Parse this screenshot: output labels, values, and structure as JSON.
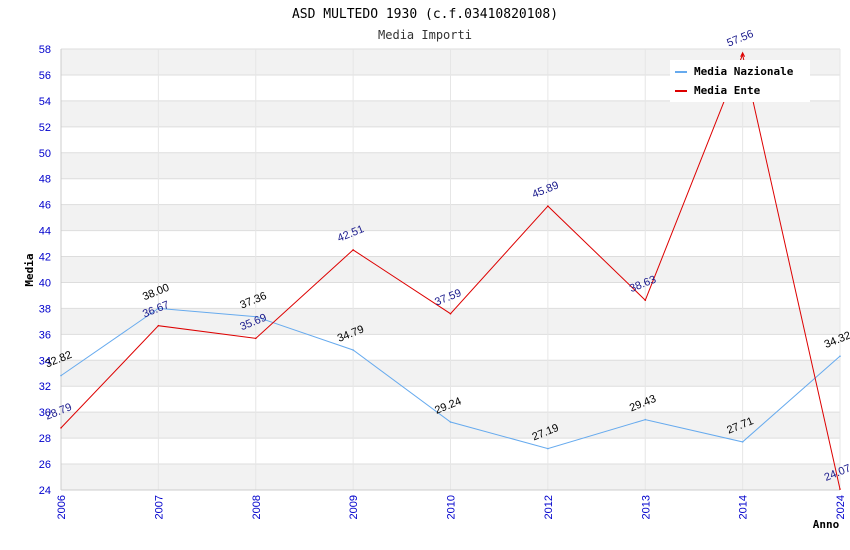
{
  "chart_data": {
    "type": "line",
    "title": "ASD MULTEDO 1930 (c.f.03410820108)",
    "subtitle": "Media Importi",
    "xlabel": "Anno",
    "ylabel": "Media",
    "categories": [
      "2006",
      "2007",
      "2008",
      "2009",
      "2010",
      "2012",
      "2013",
      "2014",
      "2024"
    ],
    "ylim": [
      24,
      58
    ],
    "yticks": [
      24,
      26,
      28,
      30,
      32,
      34,
      36,
      38,
      40,
      42,
      44,
      46,
      48,
      50,
      52,
      54,
      56,
      58
    ],
    "legend_position": "top-right",
    "series": [
      {
        "name": "Media Nazionale",
        "color": "#66aaee",
        "values": [
          32.82,
          38.0,
          37.36,
          34.79,
          29.24,
          27.19,
          29.43,
          27.71,
          34.32
        ],
        "labels": [
          "32.82",
          "38.00",
          "37.36",
          "34.79",
          "29.24",
          "27.19",
          "29.43",
          "27.71",
          "34.32"
        ]
      },
      {
        "name": "Media Ente",
        "color": "#dd0000",
        "values": [
          28.79,
          36.67,
          35.69,
          42.51,
          37.59,
          45.89,
          38.63,
          57.56,
          24.07
        ],
        "labels": [
          "28.79",
          "36.67",
          "35.69",
          "42.51",
          "37.59",
          "45.89",
          "38.63",
          "57.56",
          "24.07"
        ]
      }
    ]
  }
}
